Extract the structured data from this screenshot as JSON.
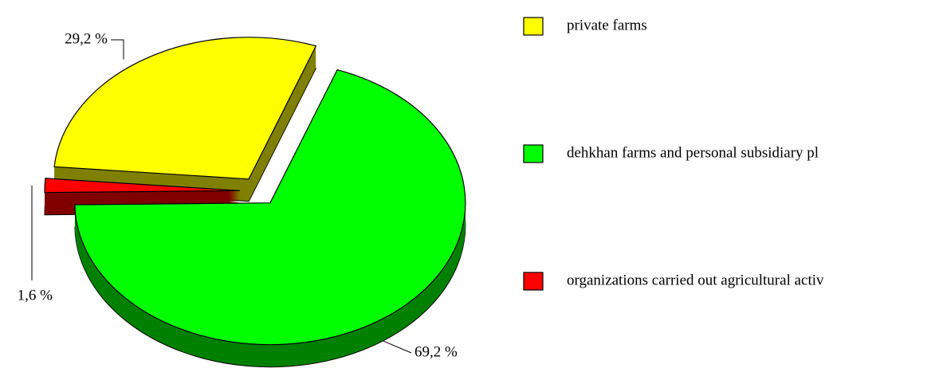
{
  "chart_data": {
    "type": "pie",
    "categories": [
      "private farms",
      "dehkhan farms and personal subsidiary pl",
      "organizations carried out agricultural activ"
    ],
    "values": [
      29.2,
      69.2,
      1.6
    ],
    "value_labels": [
      "29,2 %",
      "69,2 %",
      "1,6 %"
    ],
    "colors": [
      "#ffff00",
      "#00ff00",
      "#ff0000"
    ],
    "side_colors": [
      "#808000",
      "#008000",
      "#800000"
    ],
    "legend": "right"
  }
}
